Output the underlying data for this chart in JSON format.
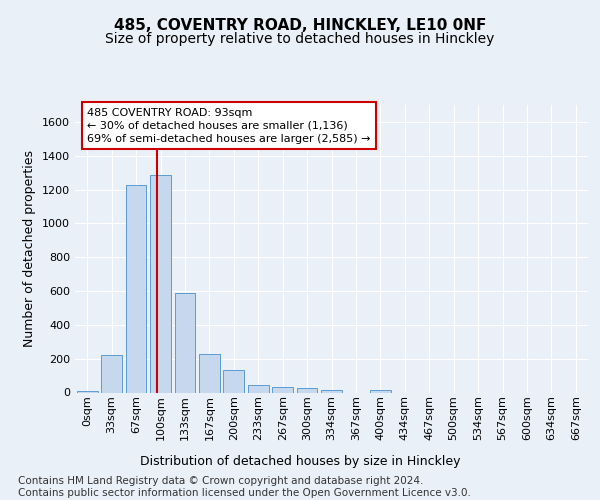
{
  "title": "485, COVENTRY ROAD, HINCKLEY, LE10 0NF",
  "subtitle": "Size of property relative to detached houses in Hinckley",
  "xlabel": "Distribution of detached houses by size in Hinckley",
  "ylabel": "Number of detached properties",
  "footer_line1": "Contains HM Land Registry data © Crown copyright and database right 2024.",
  "footer_line2": "Contains public sector information licensed under the Open Government Licence v3.0.",
  "bin_labels": [
    "0sqm",
    "33sqm",
    "67sqm",
    "100sqm",
    "133sqm",
    "167sqm",
    "200sqm",
    "233sqm",
    "267sqm",
    "300sqm",
    "334sqm",
    "367sqm",
    "400sqm",
    "434sqm",
    "467sqm",
    "500sqm",
    "534sqm",
    "567sqm",
    "600sqm",
    "634sqm",
    "667sqm"
  ],
  "bar_values": [
    10,
    220,
    1225,
    1285,
    590,
    230,
    135,
    45,
    30,
    25,
    15,
    0,
    15,
    0,
    0,
    0,
    0,
    0,
    0,
    0,
    0
  ],
  "bar_color": "#c5d8ed",
  "bar_edge_color": "#5b9bd5",
  "ylim": [
    0,
    1700
  ],
  "yticks": [
    0,
    200,
    400,
    600,
    800,
    1000,
    1200,
    1400,
    1600
  ],
  "vline_x": 2.85,
  "vline_color": "#cc0000",
  "annotation_text_line1": "485 COVENTRY ROAD: 93sqm",
  "annotation_text_line2": "← 30% of detached houses are smaller (1,136)",
  "annotation_text_line3": "69% of semi-detached houses are larger (2,585) →",
  "annotation_box_color": "#cc0000",
  "bg_color": "#eaf0f8",
  "plot_bg_color": "#eaf0f8",
  "grid_color": "#ffffff",
  "title_fontsize": 11,
  "subtitle_fontsize": 10,
  "ylabel_fontsize": 9,
  "xlabel_fontsize": 9,
  "tick_fontsize": 8,
  "annotation_fontsize": 8,
  "footer_fontsize": 7.5
}
